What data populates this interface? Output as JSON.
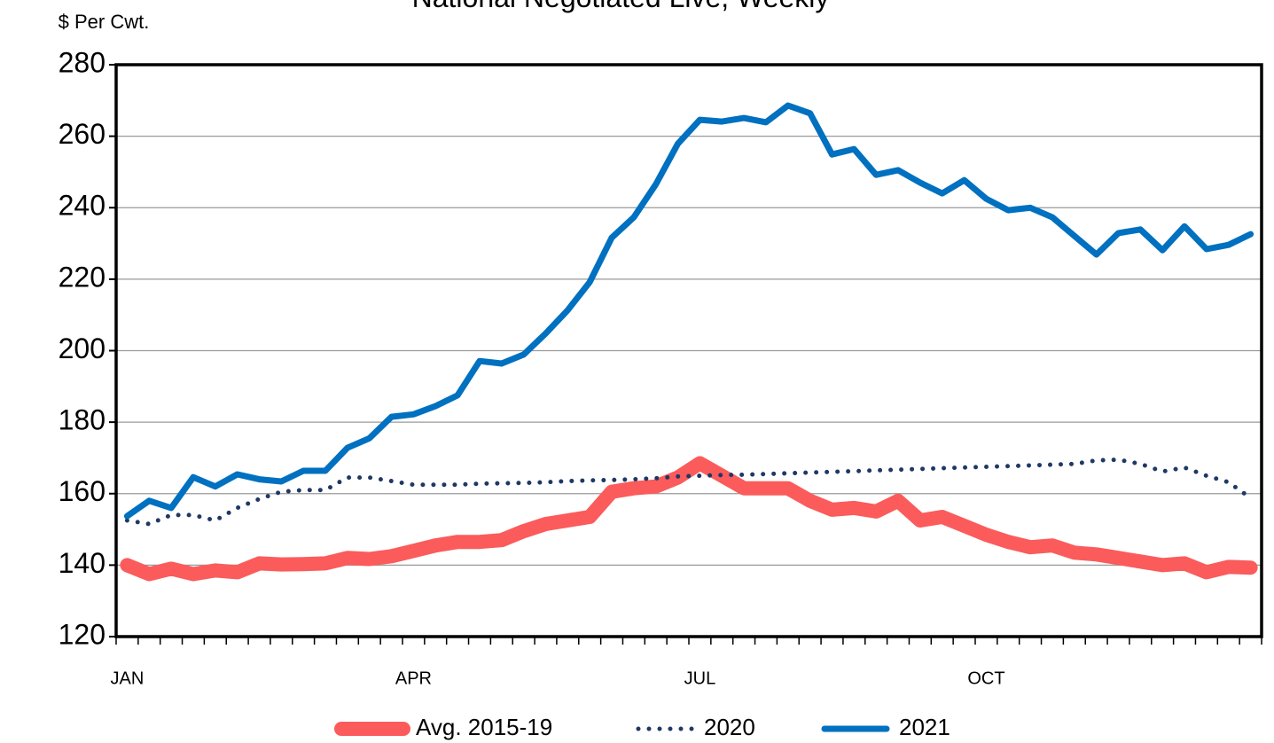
{
  "chart_data": {
    "type": "line",
    "title": "National Negotiated Live, Weekly",
    "y_label": "$ Per Cwt.",
    "categories": [
      "JAN",
      null,
      null,
      null,
      null,
      null,
      null,
      null,
      null,
      null,
      null,
      null,
      null,
      "APR",
      null,
      null,
      null,
      null,
      null,
      null,
      null,
      null,
      null,
      null,
      null,
      null,
      "JUL",
      null,
      null,
      null,
      null,
      null,
      null,
      null,
      null,
      null,
      null,
      null,
      null,
      "OCT",
      null,
      null,
      null,
      null,
      null,
      null,
      null,
      null,
      null,
      null,
      null,
      null
    ],
    "ylim": [
      120,
      280
    ],
    "yticks": [
      120,
      140,
      160,
      180,
      200,
      220,
      240,
      260,
      280
    ],
    "grid": true,
    "legend": "bottom",
    "series": [
      {
        "name": "Avg. 2015-19",
        "color": "#fb5b5b",
        "style": "solid",
        "values": [
          140,
          137.5,
          139,
          137.5,
          138.5,
          138,
          140.5,
          140.2,
          140.3,
          140.5,
          142,
          141.7,
          142.5,
          144,
          145.5,
          146.5,
          146.5,
          147,
          149.5,
          151.5,
          152.5,
          153.5,
          160.5,
          161.5,
          162,
          164.5,
          168.5,
          165,
          161.5,
          161.5,
          161.5,
          158,
          155.5,
          156,
          155,
          158,
          152.5,
          153.5,
          151,
          148.5,
          146.5,
          145,
          145.5,
          143.5,
          143,
          142,
          141,
          140,
          140.5,
          138,
          139.5,
          139.3
        ]
      },
      {
        "name": "2020",
        "color": "#1f3864",
        "style": "dotted",
        "values": [
          152.5,
          151.5,
          154,
          154,
          152.5,
          156,
          158.5,
          160.5,
          161,
          161,
          164.5,
          164.5,
          163.5,
          162.5,
          162.5,
          162.5,
          162.8,
          162.9,
          163,
          163.2,
          163.5,
          163.7,
          163.8,
          164,
          164.3,
          164.8,
          165,
          165.2,
          165.3,
          165.5,
          165.7,
          165.9,
          166.1,
          166.3,
          166.5,
          166.7,
          166.9,
          167.1,
          167.3,
          167.5,
          167.7,
          167.9,
          168.1,
          168.3,
          169.3,
          169.5,
          168.3,
          166.2,
          167.3,
          165,
          163.2,
          158.8
        ]
      },
      {
        "name": "2021",
        "color": "#0070c0",
        "style": "solid",
        "values": [
          153.7,
          158,
          156,
          164.6,
          162,
          165.4,
          164,
          163.4,
          166.4,
          166.4,
          172.8,
          175.5,
          181.5,
          182.2,
          184.5,
          187.5,
          197.1,
          196.4,
          198.9,
          204.8,
          211.3,
          219.2,
          231.6,
          237.3,
          246.5,
          257.9,
          264.6,
          264.1,
          265.1,
          263.9,
          268.6,
          266.4,
          254.9,
          256.4,
          249.2,
          250.5,
          247,
          244,
          247.7,
          242.5,
          239.3,
          240,
          237.3,
          232.1,
          226.9,
          232.9,
          233.9,
          228.1,
          234.8,
          228.4,
          229.6,
          232.6
        ]
      }
    ]
  }
}
